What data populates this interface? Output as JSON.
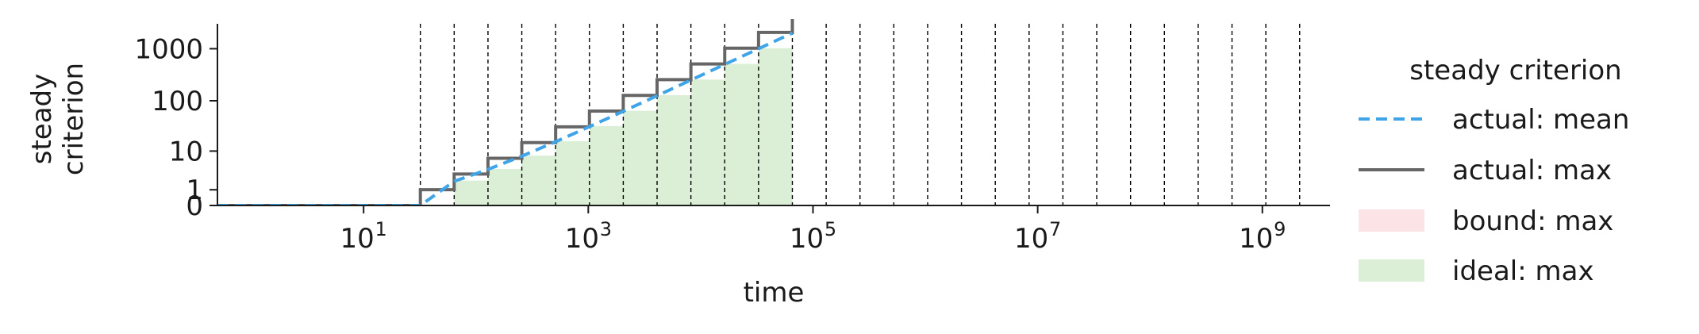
{
  "chart_data": {
    "type": "line",
    "xlabel": "time",
    "ylabel": [
      "steady",
      "criterion"
    ],
    "xscale": "log",
    "yscale": "symlog",
    "xlim": [
      0.5,
      4000000000
    ],
    "ylim": [
      0,
      3000
    ],
    "x_ticks": [
      {
        "value": 10,
        "base": "10",
        "exp": "1"
      },
      {
        "value": 1000,
        "base": "10",
        "exp": "3"
      },
      {
        "value": 100000,
        "base": "10",
        "exp": "5"
      },
      {
        "value": 10000000,
        "base": "10",
        "exp": "7"
      },
      {
        "value": 1000000000,
        "base": "10",
        "exp": "9"
      }
    ],
    "y_ticks": [
      {
        "value": 0,
        "label": "0"
      },
      {
        "value": 1,
        "label": "1"
      },
      {
        "value": 10,
        "label": "10"
      },
      {
        "value": 100,
        "label": "100"
      },
      {
        "value": 1000,
        "label": "1000"
      }
    ],
    "vlines": [
      32,
      64,
      128,
      256,
      512,
      1024,
      2048,
      4096,
      8192,
      16384,
      32768,
      65536,
      131072,
      262144,
      524288,
      1048576,
      2097152,
      4194304,
      8388608,
      16777216,
      33554432,
      67108864,
      134217728,
      268435456,
      536870912,
      1073741824,
      2147483648
    ],
    "series": [
      {
        "name": "actual: mean",
        "style": "dashed",
        "color": "#3fa4e8",
        "x": [
          0.5,
          32,
          64,
          128,
          256,
          512,
          1024,
          2048,
          4096,
          8192,
          16384,
          32768,
          65536
        ],
        "y": [
          0,
          0,
          1.9,
          3.9,
          7.8,
          15.6,
          31.3,
          62.5,
          125,
          250,
          500,
          1000,
          2000
        ]
      },
      {
        "name": "actual: max",
        "style": "step",
        "color": "#666666",
        "x": [
          0.5,
          32,
          64,
          128,
          256,
          512,
          1024,
          2048,
          4096,
          8192,
          16384,
          32768,
          65536
        ],
        "y": [
          0,
          1,
          3,
          7,
          15,
          31,
          63,
          127,
          255,
          511,
          1023,
          2047,
          4095
        ]
      },
      {
        "name": "bound: max",
        "style": "fill",
        "color": "#fbe3e6",
        "x": [],
        "y": []
      },
      {
        "name": "ideal: max",
        "style": "fill",
        "color": "#dbefd6",
        "x": [
          32,
          64,
          128,
          256,
          512,
          1024,
          2048,
          4096,
          8192,
          16384,
          32768,
          65536
        ],
        "y": [
          0,
          2,
          4,
          8,
          16,
          32,
          64,
          128,
          256,
          512,
          1024,
          2048
        ]
      }
    ],
    "legend": {
      "title": "steady criterion",
      "placement": "right",
      "entries": [
        "actual: mean",
        "actual: max",
        "bound: max",
        "ideal: max"
      ]
    },
    "grid": false
  }
}
